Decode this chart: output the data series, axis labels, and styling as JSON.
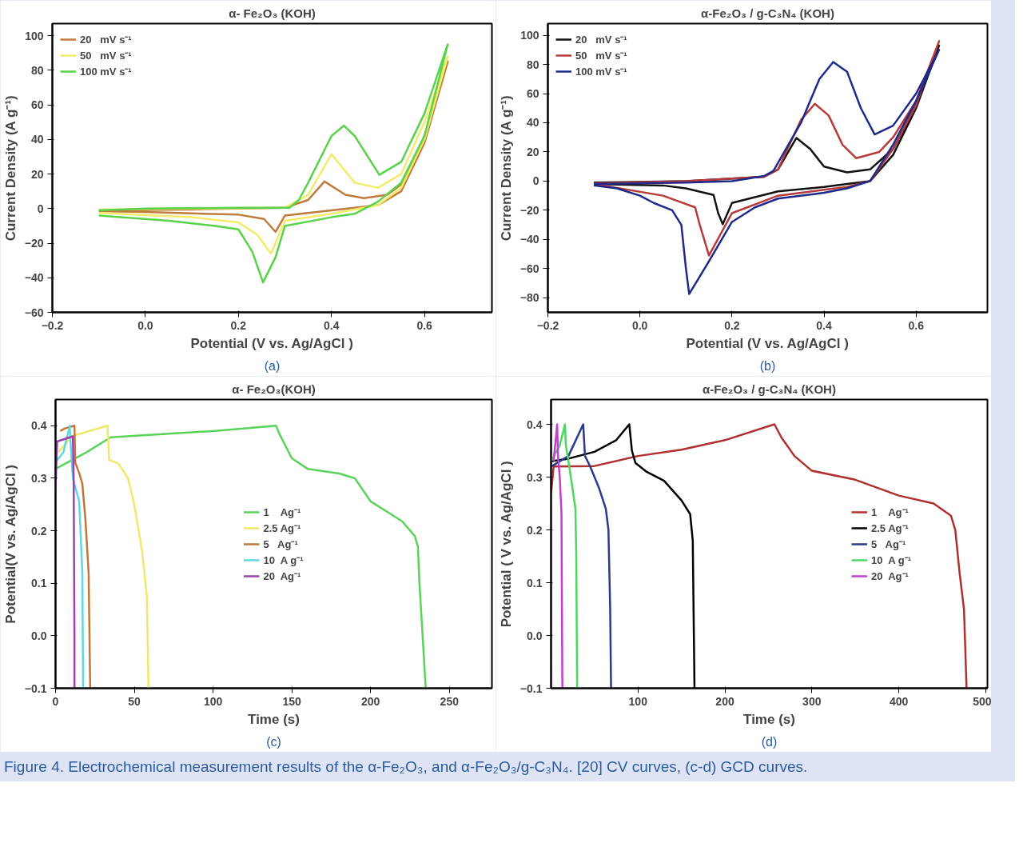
{
  "chart_data": [
    {
      "type": "line",
      "title": "α- Fe₂O₃ (KOH)",
      "xlabel": "Potential (V vs. Ag/AgCl )",
      "ylabel": "Current Density (A g⁻¹)",
      "annotations": [
        "(a)"
      ],
      "legend": "top left",
      "xlim": [
        -0.2,
        0.745
      ],
      "ylim": [
        -60,
        107
      ],
      "xticks": [
        -0.2,
        {
          "value": 0,
          "label": "0.0"
        },
        0.2,
        0.4,
        0.6
      ],
      "yticks": [
        -60,
        -40,
        -20,
        0,
        20,
        40,
        60,
        80,
        100
      ],
      "series": [
        {
          "name": "20   mV s⁻¹",
          "color": "#c07a3a",
          "x": [
            -0.1,
            0.1,
            0.3,
            0.35,
            0.385,
            0.43,
            0.47,
            0.52,
            0.55,
            0.6,
            0.65,
            0.6,
            0.55,
            0.5,
            0.4,
            0.3,
            0.28,
            0.255,
            0.2,
            0.0,
            -0.1
          ],
          "values": [
            -1,
            -0.5,
            0.5,
            5,
            15.7,
            8,
            6,
            8,
            14,
            42,
            85,
            38,
            10,
            2,
            -1,
            -4,
            -13.5,
            -6,
            -3.5,
            -2,
            -1.5
          ]
        },
        {
          "name": "50   mV s⁻¹",
          "color": "#f2ec6a",
          "x": [
            -0.1,
            0.1,
            0.3,
            0.35,
            0.4,
            0.45,
            0.5,
            0.55,
            0.6,
            0.65,
            0.6,
            0.55,
            0.5,
            0.4,
            0.3,
            0.27,
            0.24,
            0.2,
            0.1,
            -0.1
          ],
          "values": [
            -0.5,
            0,
            0.5,
            8,
            31.5,
            15,
            12,
            20,
            50,
            88,
            40,
            12,
            2,
            -3,
            -7,
            -26,
            -15,
            -8,
            -5,
            -2.5
          ]
        },
        {
          "name": "100 mV s⁻¹",
          "color": "#5ad24a",
          "x": [
            -0.1,
            0.0,
            0.2,
            0.31,
            0.33,
            0.35,
            0.4,
            0.427,
            0.45,
            0.503,
            0.55,
            0.6,
            0.65,
            0.6,
            0.55,
            0.5,
            0.45,
            0.4,
            0.3,
            0.28,
            0.253,
            0.23,
            0.2,
            0.15,
            0.05,
            -0.1
          ],
          "values": [
            -1,
            0,
            0.5,
            0.5,
            5,
            15,
            42,
            48,
            42,
            19.5,
            27,
            55,
            95,
            42,
            15,
            4,
            -3,
            -5,
            -10,
            -28,
            -42.7,
            -25,
            -12,
            -10,
            -7,
            -4
          ]
        }
      ]
    },
    {
      "type": "line",
      "title": "α-Fe₂O₃ / g-C₃N₄ (KOH)",
      "xlabel": "Potential (V vs. Ag/AgCl )",
      "ylabel": "Current Density (A g⁻¹)",
      "annotations": [
        "(b)"
      ],
      "legend": "top left",
      "xlim": [
        -0.2,
        0.755
      ],
      "ylim": [
        -90,
        108
      ],
      "xticks": [
        -0.2,
        {
          "value": 0,
          "label": "0.0"
        },
        0.2,
        0.4,
        0.6
      ],
      "yticks": [
        -80,
        -60,
        -40,
        -20,
        0,
        20,
        40,
        60,
        80,
        100
      ],
      "series": [
        {
          "name": "20   mV s⁻¹",
          "color": "#111111",
          "x": [
            -0.1,
            0.1,
            0.27,
            0.3,
            0.34,
            0.37,
            0.4,
            0.45,
            0.5,
            0.55,
            0.6,
            0.65,
            0.6,
            0.55,
            0.5,
            0.45,
            0.4,
            0.3,
            0.2,
            0.18,
            0.17,
            0.16,
            0.1,
            0.05,
            -0.1
          ],
          "values": [
            -1,
            0,
            3,
            8,
            29.6,
            22,
            10,
            6,
            8,
            22,
            52,
            93,
            50,
            18,
            0,
            -2,
            -4,
            -7,
            -15,
            -29.6,
            -22,
            -9.5,
            -5,
            -3,
            -2
          ]
        },
        {
          "name": "50   mV s⁻¹",
          "color": "#b83a3a",
          "x": [
            -0.1,
            0.1,
            0.27,
            0.3,
            0.35,
            0.38,
            0.41,
            0.44,
            0.47,
            0.52,
            0.55,
            0.6,
            0.65,
            0.6,
            0.55,
            0.5,
            0.45,
            0.4,
            0.3,
            0.2,
            0.15,
            0.13,
            0.12,
            0.05,
            -0.1
          ],
          "values": [
            -1.5,
            0,
            3,
            8,
            42,
            53,
            45,
            25,
            15.7,
            20,
            30,
            55,
            96,
            52,
            22,
            0,
            -4,
            -6,
            -10,
            -22,
            -51,
            -30,
            -18,
            -10,
            -2
          ]
        },
        {
          "name": "100 mV s⁻¹",
          "color": "#1e2a8a",
          "x": [
            -0.1,
            0.1,
            0.2,
            0.27,
            0.29,
            0.35,
            0.39,
            0.42,
            0.45,
            0.48,
            0.51,
            0.55,
            0.6,
            0.65,
            0.6,
            0.55,
            0.5,
            0.45,
            0.4,
            0.3,
            0.25,
            0.2,
            0.15,
            0.107,
            0.1,
            0.09,
            0.07,
            0.03,
            0.0,
            -0.05,
            -0.1
          ],
          "values": [
            -2,
            -1,
            0,
            3.5,
            7,
            40,
            70,
            81.7,
            75,
            50,
            32,
            38,
            60,
            90,
            55,
            25,
            0,
            -5,
            -8,
            -12,
            -18,
            -28,
            -55,
            -77.4,
            -60,
            -30,
            -20,
            -15,
            -10,
            -5,
            -3
          ]
        }
      ]
    },
    {
      "type": "line",
      "title": "α- Fe₂O₃(KOH)",
      "xlabel": "Time (s)",
      "ylabel": "Potential(V vs. Ag/AgCl )",
      "annotations": [
        "(c)"
      ],
      "legend": "center",
      "xlim": [
        0,
        277
      ],
      "ylim": [
        -0.1,
        0.45
      ],
      "xticks": [
        0,
        50,
        100,
        150,
        200,
        250
      ],
      "yticks": [
        -0.1,
        {
          "value": 0,
          "label": "0.0"
        },
        0.1,
        0.2,
        0.3,
        0.4
      ],
      "series": [
        {
          "name": "1    Ag⁻¹",
          "color": "#5ad35a",
          "x": [
            0,
            20,
            35,
            100,
            140,
            142,
            150,
            160,
            180,
            190,
            200,
            210,
            220,
            228,
            230,
            231,
            233,
            235
          ],
          "values": [
            0.318,
            0.35,
            0.378,
            0.39,
            0.4,
            0.385,
            0.338,
            0.318,
            0.309,
            0.3,
            0.256,
            0.237,
            0.218,
            0.19,
            0.17,
            0.1,
            0.0,
            -0.1
          ]
        },
        {
          "name": "2.5 Ag⁻¹",
          "color": "#f0e86a",
          "x": [
            2,
            10,
            33,
            34,
            40,
            46,
            50,
            55,
            58,
            59
          ],
          "values": [
            0.35,
            0.38,
            0.4,
            0.335,
            0.328,
            0.3,
            0.25,
            0.16,
            0.074,
            -0.1
          ]
        },
        {
          "name": "5   Ag⁻¹",
          "color": "#c0773a",
          "x": [
            3,
            6,
            12,
            12.5,
            15,
            17,
            19,
            21,
            22
          ],
          "values": [
            0.39,
            0.395,
            0.4,
            0.33,
            0.31,
            0.29,
            0.22,
            0.12,
            -0.1
          ]
        },
        {
          "name": "10  A g⁻¹",
          "color": "#5fd8e0",
          "x": [
            0,
            5,
            9,
            9.5,
            11,
            15,
            17,
            17.5
          ],
          "values": [
            0.33,
            0.35,
            0.4,
            0.37,
            0.3,
            0.256,
            0.12,
            -0.1
          ]
        },
        {
          "name": "20  Ag⁻¹",
          "color": "#a040b0",
          "x": [
            0,
            1,
            11,
            11.5,
            12,
            12
          ],
          "values": [
            0.28,
            0.37,
            0.38,
            0.3,
            0.0,
            -0.1
          ]
        }
      ]
    },
    {
      "type": "line",
      "title": "α-Fe₂O₃ / g-C₃N₄ (KOH)",
      "xlabel": "Time (s)",
      "ylabel": "Potential ( V vs. Ag/AgCl )",
      "annotations": [
        "(d)",
        "Figure 4. Electrochemical measurement results of the α-Fe₂O₃, and α-Fe₂O₃/g-C₃N₄. [20] CV curves, (c-d) GCD curves."
      ],
      "legend": "right",
      "xlim": [
        0,
        502
      ],
      "ylim": [
        -0.1,
        0.447
      ],
      "xticks": [
        100,
        200,
        300,
        400,
        500
      ],
      "yticks": [
        -0.1,
        {
          "value": 0,
          "label": "0.0"
        },
        0.1,
        0.2,
        0.3,
        0.4
      ],
      "series": [
        {
          "name": "1    Ag⁻¹",
          "color": "#b03030",
          "x": [
            0,
            3,
            50,
            100,
            150,
            200,
            257,
            265,
            280,
            300,
            350,
            400,
            440,
            460,
            465,
            470,
            475,
            478
          ],
          "values": [
            0.27,
            0.32,
            0.321,
            0.34,
            0.352,
            0.37,
            0.4,
            0.375,
            0.34,
            0.312,
            0.295,
            0.265,
            0.25,
            0.227,
            0.2,
            0.118,
            0.05,
            -0.1
          ]
        },
        {
          "name": "2.5 Ag⁻¹",
          "color": "#000000",
          "x": [
            0,
            20,
            50,
            75,
            90,
            93,
            97,
            110,
            130,
            150,
            160,
            163,
            165
          ],
          "values": [
            0.33,
            0.335,
            0.348,
            0.37,
            0.4,
            0.35,
            0.327,
            0.31,
            0.293,
            0.256,
            0.23,
            0.18,
            -0.1
          ]
        },
        {
          "name": "5   Ag⁻¹",
          "color": "#2a3a8a",
          "x": [
            0,
            20,
            37,
            39,
            45,
            55,
            63,
            66,
            68,
            69
          ],
          "values": [
            0.32,
            0.34,
            0.4,
            0.34,
            0.32,
            0.28,
            0.24,
            0.2,
            0.05,
            -0.1
          ]
        },
        {
          "name": "10  A g⁻¹",
          "color": "#4ad860",
          "x": [
            0,
            10,
            16,
            17,
            20,
            25,
            28,
            29,
            30
          ],
          "values": [
            0.33,
            0.36,
            0.4,
            0.36,
            0.33,
            0.275,
            0.24,
            0.15,
            -0.1
          ]
        },
        {
          "name": "20  Ag⁻¹",
          "color": "#c040d0",
          "x": [
            3,
            7,
            8,
            10,
            12,
            13
          ],
          "values": [
            0.33,
            0.4,
            0.34,
            0.3,
            0.23,
            -0.1
          ]
        }
      ]
    }
  ]
}
